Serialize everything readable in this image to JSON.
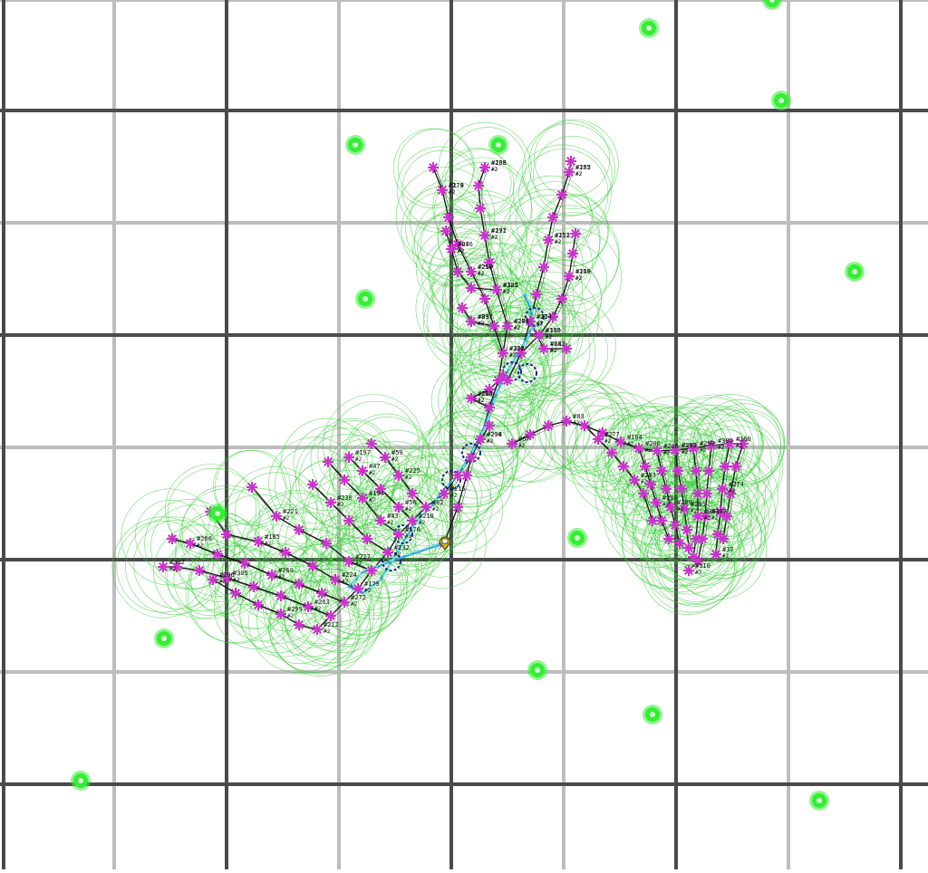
{
  "colors": {
    "background": "#ffffff",
    "grid_major": "#4a4a4a",
    "grid_minor": "#bdbdbd",
    "range_circle": "#33cc33",
    "node_marker": "#cc33cc",
    "node_link": "#111111",
    "route_path": "#2a9fd6",
    "route_path_light": "#6fe0f0",
    "route_waypoint": "#1a2a8c",
    "green_marker": "#33ee33",
    "label_text": "#111111",
    "start_icon": "#c9b800"
  },
  "icons": {
    "green_marker": "green-dot-icon",
    "node_marker": "asterisk-node-icon",
    "waypoint": "waypoint-ring-icon",
    "start": "map-pin-icon"
  },
  "labels": {
    "tree_north": [
      "#294",
      "#306",
      "#259",
      "#279",
      "#273",
      "#291",
      "#288",
      "#274",
      "#252",
      "#255",
      "#300",
      "#249",
      "#322",
      "#246",
      "#237",
      "#243",
      "#264",
      "#298",
      "#273",
      "#210",
      "#174",
      "#201",
      "#177",
      "#185",
      "#114",
      "#151",
      "#182",
      "#135",
      "#158",
      "#105",
      "#97",
      "#69",
      "#88",
      "#215"
    ],
    "tree_west": [
      "#62",
      "#59",
      "#56",
      "#197",
      "#194",
      "#232",
      "#230",
      "#227",
      "#221",
      "#224",
      "#185",
      "#272",
      "#269",
      "#266",
      "#263",
      "#305",
      "#302",
      "#299",
      "#296",
      "#215",
      "#176",
      "#179",
      "#212",
      "#225",
      "#218",
      "#47",
      "#43"
    ],
    "tree_east": [
      "#67",
      "#83",
      "#104",
      "#311",
      "#160",
      "#277",
      "#283",
      "#280",
      "#288",
      "#286",
      "#289",
      "#292",
      "#295",
      "#298",
      "#301",
      "#304",
      "#307",
      "#310",
      "#274",
      "#37"
    ],
    "count_tag": "#2"
  }
}
